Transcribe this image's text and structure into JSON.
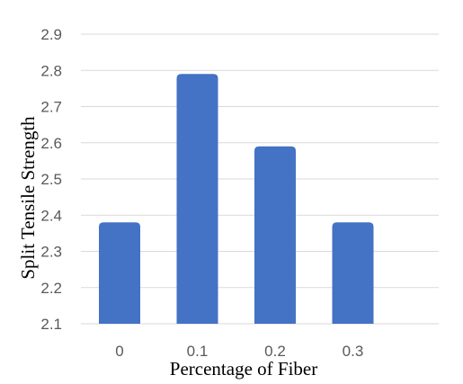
{
  "chart_data": {
    "type": "bar",
    "categories": [
      "0",
      "0.1",
      "0.2",
      "0.3"
    ],
    "values": [
      2.38,
      2.79,
      2.59,
      2.38
    ],
    "xlabel": "Percentage of Fiber",
    "ylabel": "Split Tensile Strength",
    "ylim": [
      2.1,
      2.9
    ],
    "yticks": [
      "2.1",
      "2.2",
      "2.3",
      "2.4",
      "2.5",
      "2.6",
      "2.7",
      "2.8",
      "2.9"
    ],
    "grid": true,
    "bar_color": "#4472c4",
    "grid_color": "#d9d9d9"
  }
}
